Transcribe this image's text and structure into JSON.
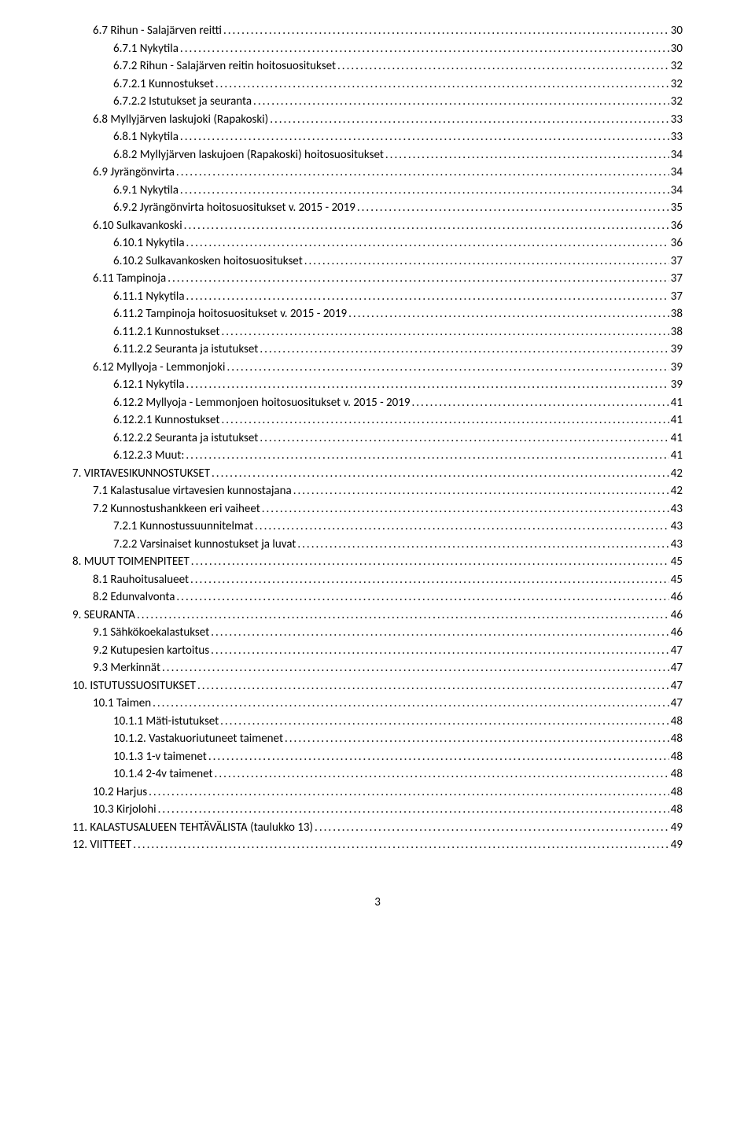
{
  "toc": [
    {
      "indent": 1,
      "label": "6.7 Rihun - Salajärven reitti",
      "page": "30"
    },
    {
      "indent": 2,
      "label": "6.7.1 Nykytila",
      "page": "30"
    },
    {
      "indent": 2,
      "label": "6.7.2 Rihun - Salajärven reitin hoitosuositukset",
      "page": "32"
    },
    {
      "indent": 2,
      "label": "6.7.2.1 Kunnostukset",
      "page": "32"
    },
    {
      "indent": 2,
      "label": "6.7.2.2 Istutukset ja seuranta",
      "page": "32"
    },
    {
      "indent": 1,
      "label": "6.8 Myllyjärven laskujoki (Rapakoski)",
      "page": "33"
    },
    {
      "indent": 2,
      "label": "6.8.1 Nykytila",
      "page": "33"
    },
    {
      "indent": 2,
      "label": "6.8.2 Myllyjärven laskujoen (Rapakoski) hoitosuositukset",
      "page": "34"
    },
    {
      "indent": 1,
      "label": "6.9 Jyrängönvirta",
      "page": "34"
    },
    {
      "indent": 2,
      "label": "6.9.1 Nykytila",
      "page": "34"
    },
    {
      "indent": 2,
      "label": "6.9.2 Jyrängönvirta hoitosuositukset v. 2015 - 2019",
      "page": "35"
    },
    {
      "indent": 1,
      "label": "6.10 Sulkavankoski",
      "page": "36"
    },
    {
      "indent": 2,
      "label": "6.10.1 Nykytila",
      "page": "36"
    },
    {
      "indent": 2,
      "label": "6.10.2 Sulkavankosken hoitosuositukset",
      "page": "37"
    },
    {
      "indent": 1,
      "label": "6.11 Tampinoja",
      "page": "37"
    },
    {
      "indent": 2,
      "label": "6.11.1 Nykytila",
      "page": "37"
    },
    {
      "indent": 2,
      "label": "6.11.2 Tampinoja hoitosuositukset v. 2015 - 2019",
      "page": "38"
    },
    {
      "indent": 2,
      "label": "6.11.2.1 Kunnostukset",
      "page": "38"
    },
    {
      "indent": 2,
      "label": "6.11.2.2 Seuranta ja istutukset",
      "page": "39"
    },
    {
      "indent": 1,
      "label": "6.12 Myllyoja - Lemmonjoki",
      "page": "39"
    },
    {
      "indent": 2,
      "label": "6.12.1 Nykytila",
      "page": "39"
    },
    {
      "indent": 2,
      "label": "6.12.2 Myllyoja - Lemmonjoen hoitosuositukset v. 2015 - 2019",
      "page": "41"
    },
    {
      "indent": 2,
      "label": "6.12.2.1 Kunnostukset",
      "page": "41"
    },
    {
      "indent": 2,
      "label": "6.12.2.2 Seuranta ja istutukset",
      "page": "41"
    },
    {
      "indent": 2,
      "label": "6.12.2.3 Muut:",
      "page": "41"
    },
    {
      "indent": 0,
      "label": "7. VIRTAVESIKUNNOSTUKSET",
      "page": "42"
    },
    {
      "indent": 1,
      "label": "7.1 Kalastusalue virtavesien kunnostajana",
      "page": "42"
    },
    {
      "indent": 1,
      "label": "7.2 Kunnostushankkeen eri vaiheet",
      "page": "43"
    },
    {
      "indent": 2,
      "label": "7.2.1 Kunnostussuunnitelmat",
      "page": "43"
    },
    {
      "indent": 2,
      "label": "7.2.2 Varsinaiset kunnostukset ja luvat",
      "page": "43"
    },
    {
      "indent": 0,
      "label": "8. MUUT TOIMENPITEET",
      "page": "45"
    },
    {
      "indent": 1,
      "label": "8.1 Rauhoitusalueet",
      "page": "45"
    },
    {
      "indent": 1,
      "label": "8.2 Edunvalvonta",
      "page": "46"
    },
    {
      "indent": 0,
      "label": "9. SEURANTA",
      "page": "46"
    },
    {
      "indent": 1,
      "label": "9.1 Sähkökoekalastukset",
      "page": "46"
    },
    {
      "indent": 1,
      "label": "9.2 Kutupesien kartoitus",
      "page": "47"
    },
    {
      "indent": 1,
      "label": "9.3 Merkinnät",
      "page": "47"
    },
    {
      "indent": 0,
      "label": "10. ISTUTUSSUOSITUKSET",
      "page": "47"
    },
    {
      "indent": 1,
      "label": "10.1 Taimen",
      "page": "47"
    },
    {
      "indent": 2,
      "label": "10.1.1 Mäti-istutukset",
      "page": "48"
    },
    {
      "indent": 2,
      "label": "10.1.2. Vastakuoriutuneet taimenet",
      "page": "48"
    },
    {
      "indent": 2,
      "label": "10.1.3 1-v taimenet",
      "page": "48"
    },
    {
      "indent": 2,
      "label": "10.1.4 2-4v taimenet",
      "page": "48"
    },
    {
      "indent": 1,
      "label": "10.2 Harjus",
      "page": "48"
    },
    {
      "indent": 1,
      "label": "10.3 Kirjolohi",
      "page": "48"
    },
    {
      "indent": 0,
      "label": "11. KALASTUSALUEEN TEHTÄVÄLISTA (taulukko 13)",
      "page": "49"
    },
    {
      "indent": 0,
      "label": "12. VIITTEET",
      "page": "49"
    }
  ],
  "footer_page": "3"
}
